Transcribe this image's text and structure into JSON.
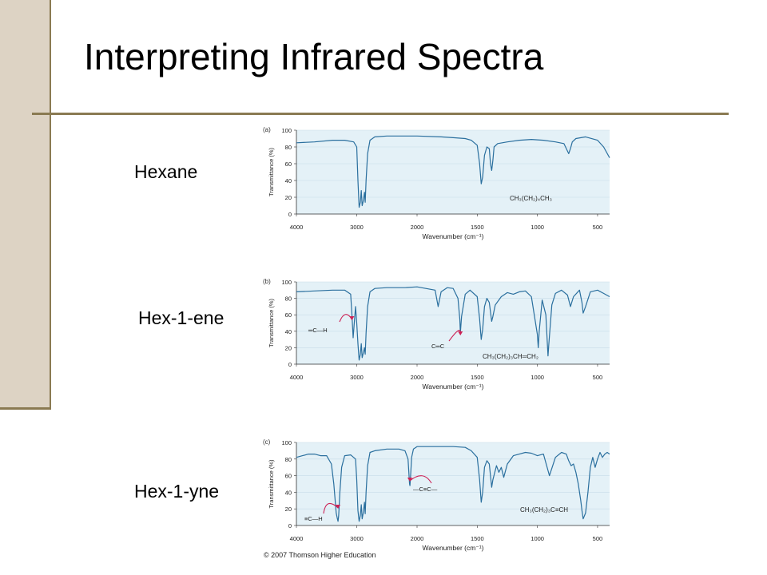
{
  "slide": {
    "title": "Interpreting Infrared Spectra",
    "colors": {
      "band": "#ddd3c4",
      "rule": "#8a7a52",
      "plot_bg": "#e4f1f7",
      "trace": "#2a6f9e",
      "arrow": "#cc2255"
    }
  },
  "labels": {
    "hexane": "Hexane",
    "hexene": "Hex-1-ene",
    "hexyne": "Hex-1-yne"
  },
  "copyright": "© 2007 Thomson Higher Education",
  "chart_data": [
    {
      "type": "line",
      "panel_label": "(a)",
      "ylabel": "Transmittance (%)",
      "xlabel": "Wavenumber (cm⁻¹)",
      "y_ticks": [
        "100",
        "80",
        "60",
        "40",
        "20",
        "0"
      ],
      "x_ticks": [
        "4000",
        "3000",
        "2000",
        "1500",
        "1000",
        "500"
      ],
      "xlim": [
        4000,
        400
      ],
      "ylim": [
        0,
        100
      ],
      "x_axis_break_at": 2000,
      "formula": "CH₃(CH₂)₄CH₃",
      "structures": [],
      "series": [
        {
          "x": [
            4000,
            3700,
            3400,
            3200,
            3050,
            3000,
            2980,
            2960,
            2940,
            2925,
            2910,
            2890,
            2872,
            2860,
            2845,
            2820,
            2780,
            2700,
            2500,
            2200,
            2000,
            1800,
            1700,
            1600,
            1550,
            1500,
            1480,
            1467,
            1455,
            1440,
            1420,
            1400,
            1390,
            1380,
            1370,
            1360,
            1330,
            1250,
            1150,
            1050,
            950,
            850,
            780,
            740,
            725,
            710,
            680,
            600,
            500,
            450,
            400
          ],
          "y": [
            85,
            86,
            88,
            88,
            86,
            80,
            40,
            8,
            14,
            28,
            10,
            16,
            26,
            14,
            40,
            72,
            88,
            92,
            93,
            93,
            93,
            92,
            91,
            90,
            88,
            82,
            60,
            36,
            44,
            70,
            80,
            78,
            60,
            52,
            64,
            80,
            84,
            86,
            88,
            89,
            88,
            86,
            84,
            72,
            78,
            86,
            90,
            92,
            88,
            80,
            67
          ]
        }
      ]
    },
    {
      "type": "line",
      "panel_label": "(b)",
      "ylabel": "Transmittance (%)",
      "xlabel": "Wavenumber (cm⁻¹)",
      "y_ticks": [
        "100",
        "80",
        "60",
        "40",
        "20",
        "0"
      ],
      "x_ticks": [
        "4000",
        "3000",
        "2000",
        "1500",
        "1000",
        "500"
      ],
      "xlim": [
        4000,
        400
      ],
      "ylim": [
        0,
        100
      ],
      "x_axis_break_at": 2000,
      "formula": "CH₃(CH₂)₃CH═CH₂",
      "structures": [
        {
          "id": "vinyl-c-h",
          "text": "═C—H",
          "points_to": 3080
        },
        {
          "id": "c-double-c",
          "text": "C═C",
          "points_to": 1640
        }
      ],
      "series": [
        {
          "x": [
            4000,
            3700,
            3400,
            3200,
            3100,
            3080,
            3060,
            3020,
            3000,
            2980,
            2960,
            2940,
            2925,
            2910,
            2890,
            2872,
            2860,
            2845,
            2820,
            2780,
            2700,
            2500,
            2200,
            2000,
            1850,
            1825,
            1800,
            1750,
            1700,
            1660,
            1645,
            1640,
            1630,
            1600,
            1560,
            1500,
            1480,
            1467,
            1455,
            1440,
            1420,
            1400,
            1380,
            1370,
            1350,
            1300,
            1250,
            1200,
            1150,
            1100,
            1050,
            1000,
            993,
            985,
            960,
            930,
            912,
            905,
            880,
            850,
            800,
            750,
            725,
            700,
            650,
            630,
            620,
            600,
            560,
            500,
            450,
            400
          ],
          "y": [
            88,
            89,
            90,
            90,
            85,
            60,
            32,
            70,
            50,
            25,
            5,
            12,
            25,
            8,
            14,
            20,
            12,
            38,
            70,
            88,
            92,
            93,
            93,
            94,
            90,
            70,
            88,
            93,
            92,
            80,
            55,
            38,
            58,
            85,
            90,
            82,
            55,
            30,
            42,
            70,
            80,
            75,
            52,
            58,
            72,
            82,
            87,
            85,
            88,
            89,
            82,
            36,
            20,
            40,
            78,
            60,
            10,
            24,
            72,
            86,
            90,
            84,
            70,
            82,
            90,
            75,
            62,
            70,
            88,
            90,
            86,
            82
          ]
        }
      ]
    },
    {
      "type": "line",
      "panel_label": "(c)",
      "ylabel": "Transmittance (%)",
      "xlabel": "Wavenumber (cm⁻¹)",
      "y_ticks": [
        "100",
        "80",
        "60",
        "40",
        "20",
        "0"
      ],
      "x_ticks": [
        "4000",
        "3000",
        "2000",
        "1500",
        "1000",
        "500"
      ],
      "xlim": [
        4000,
        400
      ],
      "ylim": [
        0,
        100
      ],
      "x_axis_break_at": 2000,
      "formula": "CH₃(CH₂)₃C≡CH",
      "structures": [
        {
          "id": "alkyne-c-h",
          "text": "≡C—H",
          "points_to": 3310
        },
        {
          "id": "c-triple-c",
          "text": "—C≡C—",
          "points_to": 2120
        }
      ],
      "series": [
        {
          "x": [
            4000,
            3900,
            3800,
            3700,
            3600,
            3500,
            3420,
            3380,
            3340,
            3320,
            3310,
            3300,
            3280,
            3250,
            3200,
            3100,
            3020,
            3000,
            2980,
            2960,
            2940,
            2925,
            2910,
            2890,
            2872,
            2860,
            2845,
            2820,
            2780,
            2700,
            2500,
            2300,
            2200,
            2150,
            2125,
            2118,
            2110,
            2090,
            2060,
            2000,
            1900,
            1800,
            1700,
            1600,
            1550,
            1500,
            1480,
            1467,
            1455,
            1440,
            1420,
            1400,
            1380,
            1370,
            1340,
            1320,
            1300,
            1280,
            1250,
            1200,
            1150,
            1100,
            1050,
            1000,
            950,
            900,
            850,
            800,
            760,
            740,
            720,
            700,
            680,
            660,
            640,
            630,
            620,
            600,
            580,
            560,
            540,
            520,
            500,
            480,
            460,
            440,
            420,
            400
          ],
          "y": [
            82,
            84,
            86,
            86,
            84,
            84,
            74,
            50,
            15,
            8,
            5,
            12,
            40,
            70,
            84,
            85,
            80,
            55,
            18,
            5,
            12,
            25,
            8,
            16,
            28,
            14,
            40,
            72,
            88,
            90,
            92,
            92,
            90,
            80,
            50,
            48,
            56,
            82,
            92,
            95,
            95,
            95,
            95,
            94,
            90,
            82,
            55,
            28,
            40,
            70,
            78,
            74,
            46,
            55,
            72,
            64,
            70,
            58,
            74,
            84,
            86,
            88,
            87,
            84,
            86,
            60,
            82,
            88,
            86,
            78,
            72,
            74,
            64,
            50,
            30,
            18,
            8,
            15,
            40,
            70,
            82,
            70,
            80,
            88,
            82,
            86,
            88,
            86
          ]
        }
      ]
    }
  ]
}
